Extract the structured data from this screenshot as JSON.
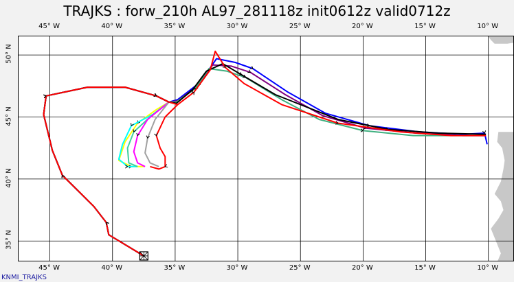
{
  "title": "TRAJKS : forw_210h AL97_281118z init0612z valid0712z",
  "credit": "KNMI_TRAJKS",
  "lon_ticks": [
    {
      "lon": -45,
      "label": "45° W"
    },
    {
      "lon": -40,
      "label": "40° W"
    },
    {
      "lon": -35,
      "label": "35° W"
    },
    {
      "lon": -30,
      "label": "30° W"
    },
    {
      "lon": -25,
      "label": "25° W"
    },
    {
      "lon": -20,
      "label": "20° W"
    },
    {
      "lon": -15,
      "label": "15° W"
    },
    {
      "lon": -10,
      "label": "10° W"
    }
  ],
  "lat_ticks": [
    {
      "lat": 50,
      "label": "50° N"
    },
    {
      "lat": 45,
      "label": "45° N"
    },
    {
      "lat": 40,
      "label": "40° N"
    },
    {
      "lat": 35,
      "label": "35° N"
    }
  ],
  "map_extent": {
    "lon_min": -47.5,
    "lon_max": -7.9,
    "lat_min": 33.3,
    "lat_max": 51.5
  },
  "colors": {
    "land": "#c8c8c8",
    "grid": "#000000",
    "background": "#f2f2f2"
  },
  "start_point": {
    "lon": -37.5,
    "lat": 33.8
  },
  "trajectories": [
    {
      "color": "#ffff00",
      "points": [
        [
          -37.5,
          33.8
        ],
        [
          -40.3,
          35.5
        ],
        [
          -40.5,
          36.5
        ],
        [
          -41.5,
          37.8
        ],
        [
          -42.5,
          38.8
        ],
        [
          -44.0,
          40.3
        ],
        [
          -44.8,
          42.3
        ],
        [
          -45.5,
          45.2
        ],
        [
          -45.3,
          46.7
        ],
        [
          -42.0,
          47.4
        ],
        [
          -39.0,
          47.4
        ],
        [
          -36.5,
          46.7
        ],
        [
          -35.5,
          46.2
        ],
        [
          -36.5,
          45.6
        ],
        [
          -38.0,
          44.5
        ],
        [
          -39.0,
          43.0
        ],
        [
          -39.5,
          41.5
        ],
        [
          -38.5,
          41.0
        ],
        [
          -37.5,
          41.0
        ]
      ]
    },
    {
      "color": "#00ffff",
      "points": [
        [
          -37.5,
          33.8
        ],
        [
          -40.3,
          35.5
        ],
        [
          -40.5,
          36.5
        ],
        [
          -41.5,
          37.8
        ],
        [
          -42.5,
          38.8
        ],
        [
          -44.0,
          40.3
        ],
        [
          -44.8,
          42.3
        ],
        [
          -45.5,
          45.2
        ],
        [
          -45.3,
          46.7
        ],
        [
          -42.0,
          47.4
        ],
        [
          -39.0,
          47.4
        ],
        [
          -36.5,
          46.7
        ],
        [
          -35.5,
          46.2
        ],
        [
          -36.8,
          45.2
        ],
        [
          -38.5,
          44.3
        ],
        [
          -39.2,
          42.8
        ],
        [
          -39.5,
          41.6
        ],
        [
          -38.8,
          41.0
        ],
        [
          -38.0,
          41.0
        ]
      ]
    },
    {
      "color": "#40d0a0",
      "points": [
        [
          -37.5,
          33.8
        ],
        [
          -40.3,
          35.5
        ],
        [
          -40.5,
          36.5
        ],
        [
          -41.5,
          37.8
        ],
        [
          -42.5,
          38.8
        ],
        [
          -44.0,
          40.3
        ],
        [
          -44.8,
          42.3
        ],
        [
          -45.5,
          45.2
        ],
        [
          -45.3,
          46.7
        ],
        [
          -42.0,
          47.4
        ],
        [
          -39.0,
          47.4
        ],
        [
          -36.5,
          46.7
        ],
        [
          -35.5,
          46.2
        ],
        [
          -37.0,
          45.0
        ],
        [
          -38.3,
          43.8
        ],
        [
          -38.8,
          42.5
        ],
        [
          -38.7,
          41.3
        ],
        [
          -38.0,
          41.0
        ]
      ]
    },
    {
      "color": "#ff00ff",
      "points": [
        [
          -37.5,
          33.8
        ],
        [
          -40.3,
          35.5
        ],
        [
          -40.5,
          36.5
        ],
        [
          -41.5,
          37.8
        ],
        [
          -42.5,
          38.8
        ],
        [
          -44.0,
          40.3
        ],
        [
          -44.8,
          42.3
        ],
        [
          -45.5,
          45.2
        ],
        [
          -45.3,
          46.7
        ],
        [
          -42.0,
          47.4
        ],
        [
          -39.0,
          47.4
        ],
        [
          -36.5,
          46.7
        ],
        [
          -35.5,
          46.2
        ],
        [
          -37.2,
          44.8
        ],
        [
          -38.0,
          43.5
        ],
        [
          -38.3,
          42.2
        ],
        [
          -38.0,
          41.3
        ],
        [
          -37.4,
          41.0
        ]
      ]
    },
    {
      "color": "#a0a0a0",
      "points": [
        [
          -37.5,
          33.8
        ],
        [
          -40.3,
          35.5
        ],
        [
          -40.5,
          36.5
        ],
        [
          -41.5,
          37.8
        ],
        [
          -42.5,
          38.8
        ],
        [
          -44.0,
          40.3
        ],
        [
          -44.8,
          42.3
        ],
        [
          -45.5,
          45.2
        ],
        [
          -45.3,
          46.7
        ],
        [
          -42.0,
          47.4
        ],
        [
          -39.0,
          47.4
        ],
        [
          -36.5,
          46.7
        ],
        [
          -35.5,
          46.2
        ],
        [
          -36.6,
          44.8
        ],
        [
          -37.2,
          43.3
        ],
        [
          -37.4,
          42.1
        ],
        [
          -37.0,
          41.3
        ],
        [
          -36.3,
          41.0
        ]
      ]
    },
    {
      "color": "#0000ff",
      "points": [
        [
          -37.5,
          33.8
        ],
        [
          -40.3,
          35.5
        ],
        [
          -40.5,
          36.5
        ],
        [
          -41.5,
          37.8
        ],
        [
          -42.5,
          38.8
        ],
        [
          -44.0,
          40.3
        ],
        [
          -44.8,
          42.3
        ],
        [
          -45.5,
          45.2
        ],
        [
          -45.3,
          46.7
        ],
        [
          -42.0,
          47.4
        ],
        [
          -39.0,
          47.4
        ],
        [
          -36.5,
          46.7
        ],
        [
          -35.5,
          46.2
        ],
        [
          -34.8,
          46.4
        ],
        [
          -33.0,
          47.8
        ],
        [
          -31.7,
          49.7
        ],
        [
          -30.2,
          49.4
        ],
        [
          -28.8,
          48.9
        ],
        [
          -26.0,
          47.0
        ],
        [
          -23.0,
          45.3
        ],
        [
          -19.5,
          44.3
        ],
        [
          -15.5,
          43.8
        ],
        [
          -12.0,
          43.6
        ],
        [
          -10.3,
          43.7
        ],
        [
          -10.1,
          42.8
        ]
      ]
    },
    {
      "color": "#800080",
      "points": [
        [
          -37.5,
          33.8
        ],
        [
          -40.3,
          35.5
        ],
        [
          -40.5,
          36.5
        ],
        [
          -41.5,
          37.8
        ],
        [
          -42.5,
          38.8
        ],
        [
          -44.0,
          40.3
        ],
        [
          -44.8,
          42.3
        ],
        [
          -45.5,
          45.2
        ],
        [
          -45.3,
          46.7
        ],
        [
          -42.0,
          47.4
        ],
        [
          -39.0,
          47.4
        ],
        [
          -36.5,
          46.7
        ],
        [
          -35.5,
          46.2
        ],
        [
          -34.8,
          46.3
        ],
        [
          -33.2,
          47.5
        ],
        [
          -32.0,
          49.2
        ],
        [
          -30.5,
          49.1
        ],
        [
          -29.0,
          48.6
        ],
        [
          -26.2,
          46.8
        ],
        [
          -23.2,
          45.1
        ],
        [
          -19.8,
          44.1
        ],
        [
          -15.8,
          43.7
        ],
        [
          -12.0,
          43.5
        ],
        [
          -10.2,
          43.5
        ]
      ]
    },
    {
      "color": "#40b080",
      "points": [
        [
          -37.5,
          33.8
        ],
        [
          -40.3,
          35.5
        ],
        [
          -40.5,
          36.5
        ],
        [
          -41.5,
          37.8
        ],
        [
          -42.5,
          38.8
        ],
        [
          -44.0,
          40.3
        ],
        [
          -44.8,
          42.3
        ],
        [
          -45.5,
          45.2
        ],
        [
          -45.3,
          46.7
        ],
        [
          -42.0,
          47.4
        ],
        [
          -39.0,
          47.4
        ],
        [
          -36.5,
          46.7
        ],
        [
          -35.5,
          46.2
        ],
        [
          -34.9,
          46.2
        ],
        [
          -33.4,
          47.3
        ],
        [
          -32.3,
          48.9
        ],
        [
          -30.9,
          48.7
        ],
        [
          -29.4,
          48.2
        ],
        [
          -26.5,
          46.4
        ],
        [
          -23.5,
          44.8
        ],
        [
          -20.0,
          43.9
        ],
        [
          -16.0,
          43.5
        ],
        [
          -12.0,
          43.5
        ],
        [
          -10.2,
          43.5
        ]
      ]
    },
    {
      "color": "#000000",
      "points": [
        [
          -37.5,
          33.8
        ],
        [
          -40.3,
          35.5
        ],
        [
          -40.5,
          36.5
        ],
        [
          -41.5,
          37.8
        ],
        [
          -42.5,
          38.8
        ],
        [
          -44.0,
          40.3
        ],
        [
          -44.8,
          42.3
        ],
        [
          -45.5,
          45.2
        ],
        [
          -45.3,
          46.7
        ],
        [
          -42.0,
          47.4
        ],
        [
          -39.0,
          47.4
        ],
        [
          -36.5,
          46.7
        ],
        [
          -35.5,
          46.2
        ],
        [
          -34.9,
          46.1
        ],
        [
          -33.6,
          47.2
        ],
        [
          -32.5,
          48.7
        ],
        [
          -31.2,
          49.3
        ],
        [
          -29.7,
          48.4
        ],
        [
          -27.0,
          46.8
        ],
        [
          -22.0,
          44.8
        ],
        [
          -18.0,
          44.0
        ],
        [
          -14.0,
          43.7
        ],
        [
          -10.2,
          43.6
        ]
      ]
    },
    {
      "color": "#ff0000",
      "points": [
        [
          -37.5,
          33.8
        ],
        [
          -40.3,
          35.5
        ],
        [
          -40.5,
          36.5
        ],
        [
          -41.5,
          37.8
        ],
        [
          -42.5,
          38.8
        ],
        [
          -44.0,
          40.3
        ],
        [
          -44.8,
          42.3
        ],
        [
          -45.5,
          45.2
        ],
        [
          -45.3,
          46.7
        ],
        [
          -42.0,
          47.4
        ],
        [
          -39.0,
          47.4
        ],
        [
          -36.5,
          46.7
        ],
        [
          -35.5,
          46.2
        ],
        [
          -34.8,
          46.0
        ],
        [
          -33.5,
          47.0
        ],
        [
          -32.2,
          48.8
        ],
        [
          -31.8,
          50.3
        ],
        [
          -31.0,
          49.0
        ],
        [
          -29.5,
          47.7
        ],
        [
          -26.5,
          46.0
        ],
        [
          -22.0,
          44.5
        ],
        [
          -17.0,
          43.8
        ],
        [
          -13.0,
          43.5
        ],
        [
          -10.2,
          43.5
        ]
      ]
    },
    {
      "color": "#ff0000",
      "points": [
        [
          -34.8,
          46.0
        ],
        [
          -35.8,
          45.0
        ],
        [
          -36.5,
          43.5
        ],
        [
          -36.2,
          42.5
        ],
        [
          -35.8,
          41.8
        ],
        [
          -35.8,
          41.0
        ],
        [
          -36.3,
          40.8
        ],
        [
          -37.0,
          41.0
        ]
      ]
    }
  ],
  "land": [
    {
      "name": "Iberia",
      "points": [
        [
          -9.2,
          43.8
        ],
        [
          -8.1,
          43.8
        ],
        [
          -7.9,
          43.8
        ],
        [
          -7.9,
          33.3
        ],
        [
          -9.3,
          33.3
        ],
        [
          -9.0,
          34.0
        ],
        [
          -9.4,
          35.0
        ],
        [
          -9.8,
          36.0
        ],
        [
          -9.2,
          36.8
        ],
        [
          -8.8,
          37.5
        ],
        [
          -9.0,
          38.2
        ],
        [
          -9.5,
          38.8
        ],
        [
          -9.0,
          39.8
        ],
        [
          -8.8,
          40.8
        ],
        [
          -8.7,
          41.5
        ],
        [
          -8.9,
          42.5
        ],
        [
          -9.3,
          43.0
        ]
      ]
    },
    {
      "name": "Ireland",
      "points": [
        [
          -7.9,
          51.5
        ],
        [
          -10.0,
          51.5
        ],
        [
          -9.8,
          51.2
        ],
        [
          -9.5,
          50.9
        ],
        [
          -8.5,
          50.9
        ],
        [
          -7.9,
          51.0
        ]
      ]
    }
  ]
}
